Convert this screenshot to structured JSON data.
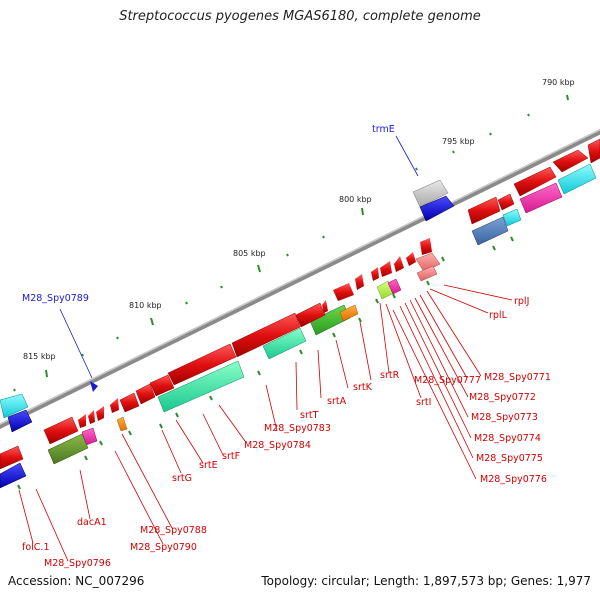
{
  "title": "Streptococcus pyogenes MGAS6180, complete genome",
  "footer": {
    "accession": "Accession: NC_007296",
    "summary": "Topology: circular; Length: 1,897,573 bp; Genes: 1,977"
  },
  "colors": {
    "backbone": "#8a8a8a",
    "tick": "#2e8b2e",
    "gene_red": "#e01010",
    "label_red": "#d40000",
    "label_blue": "#1a1acc"
  },
  "tick_labels": [
    "790 kbp",
    "795 kbp",
    "800 kbp",
    "805 kbp",
    "810 kbp",
    "815 kbp"
  ],
  "gene_labels": {
    "blue": [
      "trmE",
      "M28_Spy0789"
    ],
    "red": [
      "rplJ",
      "rplL",
      "M28_Spy0771",
      "M28_Spy0777",
      "M28_Spy0772",
      "M28_Spy0773",
      "M28_Spy0774",
      "M28_Spy0775",
      "M28_Spy0776",
      "srtR",
      "srtI",
      "srtK",
      "srtA",
      "srtT",
      "M28_Spy0783",
      "M28_Spy0784",
      "srtF",
      "srtE",
      "srtG",
      "M28_Spy0788",
      "M28_Spy0790",
      "dacA1",
      "folC.1",
      "M28_Spy0796"
    ]
  }
}
